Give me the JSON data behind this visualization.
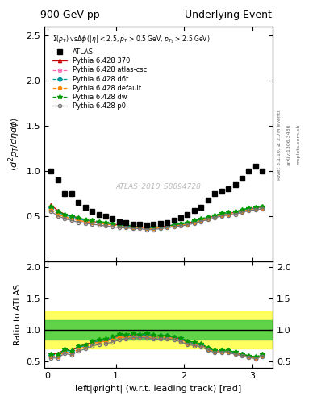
{
  "title_left": "900 GeV pp",
  "title_right": "Underlying Event",
  "xlabel": "left|φright| (w.r.t. leading track) [rad]",
  "ylabel_main": "⟨d² p_T/dηdφ⟩",
  "ylabel_ratio": "Ratio to ATLAS",
  "annotation": "Σ(p_T) vsΔφ (|η| < 2.5, p_T > 0.5 GeV, p_{T_1} > 2.5 GeV)",
  "watermark": "ATLAS_2010_S8894728",
  "rivet_label": "Rivet 3.1.10, ≥ 2.7M events",
  "arxiv_label": "arXiv:1306.3436",
  "mcplots_label": "mcplots.cern.ch",
  "ylim_main": [
    0.0,
    2.6
  ],
  "ylim_ratio": [
    0.4,
    2.1
  ],
  "xlim": [
    -0.05,
    3.3
  ],
  "x_data": [
    0.05,
    0.15,
    0.25,
    0.35,
    0.45,
    0.55,
    0.65,
    0.75,
    0.85,
    0.95,
    1.05,
    1.15,
    1.25,
    1.35,
    1.45,
    1.55,
    1.65,
    1.75,
    1.85,
    1.95,
    2.05,
    2.15,
    2.25,
    2.35,
    2.45,
    2.55,
    2.65,
    2.75,
    2.85,
    2.95,
    3.05,
    3.15
  ],
  "atlas_y": [
    1.0,
    0.9,
    0.75,
    0.75,
    0.65,
    0.6,
    0.55,
    0.52,
    0.5,
    0.47,
    0.44,
    0.43,
    0.41,
    0.41,
    0.4,
    0.41,
    0.42,
    0.43,
    0.45,
    0.48,
    0.52,
    0.56,
    0.6,
    0.68,
    0.75,
    0.78,
    0.8,
    0.85,
    0.92,
    1.0,
    1.05,
    1.0
  ],
  "p370_y": [
    0.62,
    0.56,
    0.52,
    0.5,
    0.48,
    0.46,
    0.44,
    0.43,
    0.42,
    0.41,
    0.4,
    0.39,
    0.38,
    0.38,
    0.37,
    0.37,
    0.38,
    0.39,
    0.4,
    0.41,
    0.42,
    0.44,
    0.46,
    0.48,
    0.5,
    0.52,
    0.53,
    0.54,
    0.56,
    0.58,
    0.59,
    0.6
  ],
  "atlas_csc_y": [
    0.58,
    0.52,
    0.49,
    0.47,
    0.45,
    0.44,
    0.43,
    0.42,
    0.41,
    0.4,
    0.39,
    0.38,
    0.37,
    0.37,
    0.36,
    0.36,
    0.37,
    0.38,
    0.39,
    0.4,
    0.41,
    0.43,
    0.45,
    0.47,
    0.49,
    0.51,
    0.52,
    0.53,
    0.55,
    0.57,
    0.58,
    0.59
  ],
  "d6t_y": [
    0.6,
    0.54,
    0.51,
    0.49,
    0.47,
    0.45,
    0.44,
    0.43,
    0.42,
    0.41,
    0.4,
    0.39,
    0.38,
    0.38,
    0.37,
    0.37,
    0.38,
    0.39,
    0.4,
    0.41,
    0.42,
    0.44,
    0.46,
    0.48,
    0.5,
    0.52,
    0.53,
    0.54,
    0.56,
    0.58,
    0.59,
    0.6
  ],
  "default_y": [
    0.57,
    0.52,
    0.49,
    0.47,
    0.45,
    0.44,
    0.43,
    0.42,
    0.41,
    0.4,
    0.39,
    0.38,
    0.37,
    0.37,
    0.36,
    0.36,
    0.37,
    0.38,
    0.39,
    0.4,
    0.41,
    0.43,
    0.45,
    0.47,
    0.49,
    0.51,
    0.52,
    0.53,
    0.55,
    0.57,
    0.58,
    0.59
  ],
  "dw_y": [
    0.61,
    0.55,
    0.52,
    0.5,
    0.48,
    0.46,
    0.45,
    0.44,
    0.43,
    0.42,
    0.41,
    0.4,
    0.39,
    0.38,
    0.38,
    0.38,
    0.38,
    0.39,
    0.4,
    0.42,
    0.43,
    0.45,
    0.47,
    0.49,
    0.51,
    0.53,
    0.54,
    0.55,
    0.57,
    0.59,
    0.6,
    0.61
  ],
  "p0_y": [
    0.55,
    0.5,
    0.47,
    0.45,
    0.43,
    0.42,
    0.41,
    0.4,
    0.39,
    0.38,
    0.37,
    0.37,
    0.36,
    0.36,
    0.35,
    0.35,
    0.36,
    0.37,
    0.38,
    0.39,
    0.4,
    0.42,
    0.44,
    0.46,
    0.48,
    0.5,
    0.51,
    0.52,
    0.54,
    0.56,
    0.57,
    0.58
  ],
  "color_370": "#cc0000",
  "color_atlas_csc": "#ff69b4",
  "color_d6t": "#009999",
  "color_default": "#ff8800",
  "color_dw": "#009900",
  "color_p0": "#777777",
  "color_atlas": "black",
  "band_yellow": "#ffff44",
  "band_green": "#44cc44"
}
